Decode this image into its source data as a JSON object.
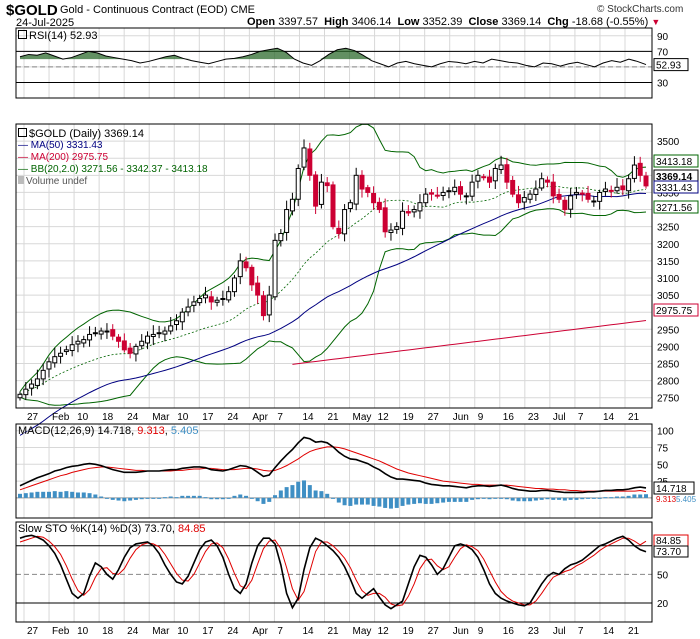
{
  "header": {
    "symbol": "$GOLD",
    "subtitle": "Gold - Continuous Contract (EOD) CME",
    "date": "24-Jul-2025",
    "open_label": "Open",
    "open": "3397.57",
    "high_label": "High",
    "high": "3406.14",
    "low_label": "Low",
    "low": "3352.39",
    "close_label": "Close",
    "close": "3369.14",
    "chg_label": "Chg",
    "chg": "-18.68 (-0.55%)",
    "brand": "© StockCharts.com"
  },
  "rsi_legend": "RSI(14) 52.93",
  "price_legend": {
    "main": "$GOLD (Daily) 3369.14",
    "ma50": "MA(50) 3331.43",
    "ma200": "MA(200) 2975.75",
    "bb": "BB(20,2.0) 3271.56 - 3342.37 - 3413.18",
    "vol": "Volume undef"
  },
  "macd_legend": {
    "name": "MACD(12,26,9)",
    "macd": "14.718",
    "signal": "9.313",
    "hist": "5.405"
  },
  "sto_legend": {
    "name": "Slow STO %K(14) %D(3)",
    "k": "73.70",
    "d": "84.85"
  },
  "colors": {
    "up": "#000000",
    "down": "#cc0033",
    "ma50": "#000080",
    "ma200": "#cc0033",
    "bb": "#006400",
    "hist": "#3f8fc4",
    "signal": "#e00000",
    "bg": "#ffffff",
    "grid": "#d8d8d8"
  },
  "chart_data": [
    {
      "type": "line",
      "title": "RSI(14) 52.93",
      "ylim": [
        10,
        100
      ],
      "y_ticks": [
        "90",
        "70",
        "50",
        "30"
      ],
      "reference_levels": [
        70,
        30
      ],
      "series": [
        {
          "name": "RSI(14)",
          "values": [
            63,
            66,
            65,
            68,
            64,
            60,
            62,
            66,
            70,
            68,
            64,
            62,
            60,
            58,
            55,
            57,
            60,
            63,
            65,
            61,
            58,
            56,
            54,
            57,
            60,
            61,
            63,
            66,
            70,
            72,
            74,
            69,
            60,
            55,
            52,
            58,
            66,
            72,
            74,
            71,
            65,
            58,
            54,
            50,
            55,
            57,
            54,
            52,
            50,
            54,
            57,
            56,
            54,
            57,
            55,
            60,
            58,
            56,
            55,
            52,
            50,
            55,
            54,
            51,
            54,
            56,
            53,
            50,
            55,
            58,
            56,
            60,
            57,
            53
          ]
        }
      ],
      "last_label": "52.93"
    },
    {
      "type": "ohlc",
      "title": "$GOLD (Daily) 3369.14",
      "ylim": [
        2720,
        3550
      ],
      "y_ticks": [
        "3500",
        "3450",
        "3400",
        "3350",
        "3300",
        "3250",
        "3200",
        "3150",
        "3100",
        "3050",
        "3000",
        "2950",
        "2900",
        "2850",
        "2800",
        "2750"
      ],
      "x_labels": [
        "27",
        "Feb",
        "10",
        "18",
        "24",
        "Mar",
        "10",
        "17",
        "24",
        "Apr",
        "7",
        "14",
        "21",
        "May",
        "12",
        "19",
        "27",
        "Jun",
        "9",
        "16",
        "23",
        "Jul",
        "7",
        "14",
        "21"
      ],
      "close": [
        2760,
        2775,
        2790,
        2805,
        2830,
        2855,
        2870,
        2880,
        2890,
        2905,
        2915,
        2920,
        2935,
        2940,
        2945,
        2945,
        2930,
        2915,
        2890,
        2880,
        2900,
        2915,
        2930,
        2935,
        2940,
        2945,
        2960,
        2975,
        3000,
        3015,
        3030,
        3040,
        3050,
        3030,
        3035,
        3040,
        3060,
        3100,
        3150,
        3130,
        3080,
        3050,
        2990,
        3050,
        3210,
        3230,
        3300,
        3330,
        3420,
        3480,
        3400,
        3310,
        3380,
        3370,
        3250,
        3230,
        3300,
        3320,
        3400,
        3360,
        3350,
        3320,
        3300,
        3235,
        3240,
        3250,
        3295,
        3290,
        3300,
        3320,
        3345,
        3345,
        3340,
        3350,
        3355,
        3365,
        3345,
        3340,
        3380,
        3400,
        3395,
        3380,
        3420,
        3430,
        3380,
        3345,
        3320,
        3335,
        3345,
        3360,
        3390,
        3380,
        3340,
        3330,
        3300,
        3340,
        3350,
        3345,
        3330,
        3325,
        3350,
        3360,
        3355,
        3365,
        3358,
        3390,
        3430,
        3400,
        3369.14
      ],
      "ma50_last": 3331.43,
      "ma200_last": 2975.75,
      "bb_upper_last": 3413.18,
      "bb_mid_last": 3342.37,
      "bb_lower_last": 3271.56,
      "right_labels": [
        "3413.18",
        "3369.14",
        "3331.43",
        "3271.56",
        "2975.75"
      ]
    },
    {
      "type": "line",
      "title": "MACD(12,26,9) 14.718, 9.313, 5.405",
      "ylim": [
        -30,
        110
      ],
      "y_ticks": [
        "100",
        "75",
        "50",
        "25"
      ],
      "series": [
        {
          "name": "MACD",
          "values": [
            18,
            22,
            26,
            30,
            33,
            36,
            40,
            42,
            45,
            47,
            48,
            50,
            51,
            50,
            48,
            45,
            42,
            40,
            38,
            38,
            38,
            39,
            40,
            40,
            40,
            41,
            42,
            42,
            44,
            45,
            46,
            46,
            45,
            42,
            41,
            40,
            42,
            45,
            48,
            47,
            44,
            38,
            32,
            34,
            45,
            55,
            64,
            72,
            82,
            90,
            88,
            83,
            84,
            82,
            76,
            68,
            62,
            58,
            57,
            54,
            51,
            46,
            42,
            36,
            31,
            28,
            28,
            27,
            26,
            25,
            22,
            20,
            19,
            18,
            18,
            17,
            16,
            15,
            17,
            18,
            18,
            17,
            18,
            19,
            17,
            14,
            12,
            11,
            10,
            10,
            11,
            11,
            10,
            9,
            8,
            8,
            8,
            8,
            9,
            9,
            10,
            11,
            11,
            12,
            12,
            13,
            15,
            16,
            14.718
          ]
        },
        {
          "name": "Signal",
          "values": [
            12,
            15,
            18,
            21,
            24,
            27,
            30,
            33,
            35,
            38,
            40,
            42,
            44,
            45,
            46,
            46,
            45,
            44,
            43,
            42,
            41,
            41,
            40,
            40,
            40,
            40,
            40,
            41,
            41,
            42,
            43,
            43,
            44,
            44,
            43,
            42,
            42,
            42,
            43,
            44,
            44,
            43,
            41,
            40,
            41,
            44,
            48,
            53,
            58,
            64,
            69,
            72,
            74,
            76,
            76,
            75,
            73,
            70,
            67,
            64,
            61,
            58,
            55,
            51,
            47,
            43,
            40,
            37,
            35,
            33,
            31,
            29,
            27,
            25,
            24,
            23,
            22,
            21,
            20,
            20,
            19,
            19,
            19,
            19,
            19,
            18,
            17,
            16,
            15,
            14,
            14,
            13,
            13,
            12,
            12,
            11,
            11,
            10,
            10,
            10,
            10,
            10,
            10,
            10,
            10,
            10,
            10,
            11,
            9.313
          ]
        }
      ],
      "histogram": [
        6,
        7,
        8,
        9,
        9,
        9,
        10,
        9,
        10,
        9,
        8,
        8,
        7,
        5,
        2,
        -1,
        -3,
        -4,
        -5,
        -4,
        -3,
        -2,
        0,
        0,
        0,
        1,
        2,
        1,
        3,
        3,
        3,
        3,
        1,
        -2,
        -2,
        -2,
        0,
        3,
        5,
        3,
        0,
        -5,
        -9,
        -6,
        4,
        11,
        16,
        19,
        24,
        26,
        19,
        11,
        10,
        6,
        0,
        -7,
        -11,
        -12,
        -10,
        -10,
        -10,
        -12,
        -13,
        -15,
        -16,
        -15,
        -12,
        -10,
        -9,
        -8,
        -9,
        -9,
        -8,
        -7,
        -6,
        -6,
        -6,
        -6,
        -3,
        -2,
        -1,
        -2,
        -1,
        0,
        -2,
        -4,
        -5,
        -5,
        -5,
        -4,
        -3,
        -2,
        -3,
        -3,
        -4,
        -3,
        -3,
        -2,
        -1,
        -1,
        0,
        1,
        1,
        2,
        2,
        3,
        5,
        5,
        5.405
      ],
      "right_labels": [
        "14.718",
        "9.313",
        "5.405"
      ]
    },
    {
      "type": "line",
      "title": "Slow STO %K(14) %D(3) 73.70, 84.85",
      "ylim": [
        0,
        105
      ],
      "y_ticks": [
        "80",
        "50",
        "20"
      ],
      "reference_levels": [
        80,
        50,
        20
      ],
      "series": [
        {
          "name": "%K",
          "values": [
            88,
            90,
            91,
            89,
            86,
            80,
            72,
            60,
            45,
            30,
            25,
            30,
            48,
            62,
            58,
            50,
            45,
            55,
            68,
            78,
            82,
            83,
            84,
            80,
            72,
            60,
            50,
            42,
            40,
            48,
            62,
            76,
            84,
            86,
            80,
            68,
            50,
            35,
            30,
            40,
            62,
            80,
            88,
            88,
            82,
            60,
            30,
            15,
            25,
            55,
            78,
            88,
            85,
            80,
            75,
            68,
            58,
            45,
            30,
            25,
            30,
            35,
            26,
            18,
            14,
            18,
            22,
            40,
            58,
            70,
            68,
            60,
            50,
            56,
            68,
            80,
            82,
            80,
            76,
            68,
            55,
            40,
            30,
            25,
            22,
            20,
            18,
            17,
            20,
            30,
            40,
            48,
            52,
            50,
            56,
            60,
            62,
            65,
            70,
            75,
            80,
            82,
            85,
            88,
            90,
            86,
            80,
            76,
            73.7
          ]
        },
        {
          "name": "%D",
          "values": [
            84,
            86,
            88,
            90,
            89,
            85,
            79,
            71,
            59,
            45,
            33,
            28,
            34,
            47,
            56,
            57,
            51,
            50,
            56,
            67,
            76,
            81,
            83,
            82,
            79,
            71,
            61,
            51,
            44,
            43,
            50,
            62,
            74,
            82,
            83,
            78,
            66,
            51,
            38,
            35,
            44,
            61,
            77,
            85,
            86,
            77,
            57,
            35,
            23,
            32,
            53,
            74,
            84,
            84,
            80,
            74,
            67,
            57,
            44,
            33,
            28,
            30,
            30,
            26,
            19,
            17,
            18,
            27,
            40,
            56,
            65,
            66,
            59,
            55,
            58,
            68,
            77,
            81,
            79,
            75,
            66,
            54,
            42,
            32,
            26,
            22,
            20,
            18,
            18,
            22,
            30,
            39,
            47,
            50,
            53,
            55,
            59,
            62,
            66,
            70,
            75,
            79,
            82,
            85,
            88,
            88,
            85,
            81,
            84.85
          ]
        }
      ],
      "x_labels": [
        "27",
        "Feb",
        "10",
        "18",
        "24",
        "Mar",
        "10",
        "17",
        "24",
        "Apr",
        "7",
        "14",
        "21",
        "May",
        "12",
        "19",
        "27",
        "Jun",
        "9",
        "16",
        "23",
        "Jul",
        "7",
        "14",
        "21"
      ],
      "right_labels": [
        "84.85",
        "73.70"
      ]
    }
  ]
}
